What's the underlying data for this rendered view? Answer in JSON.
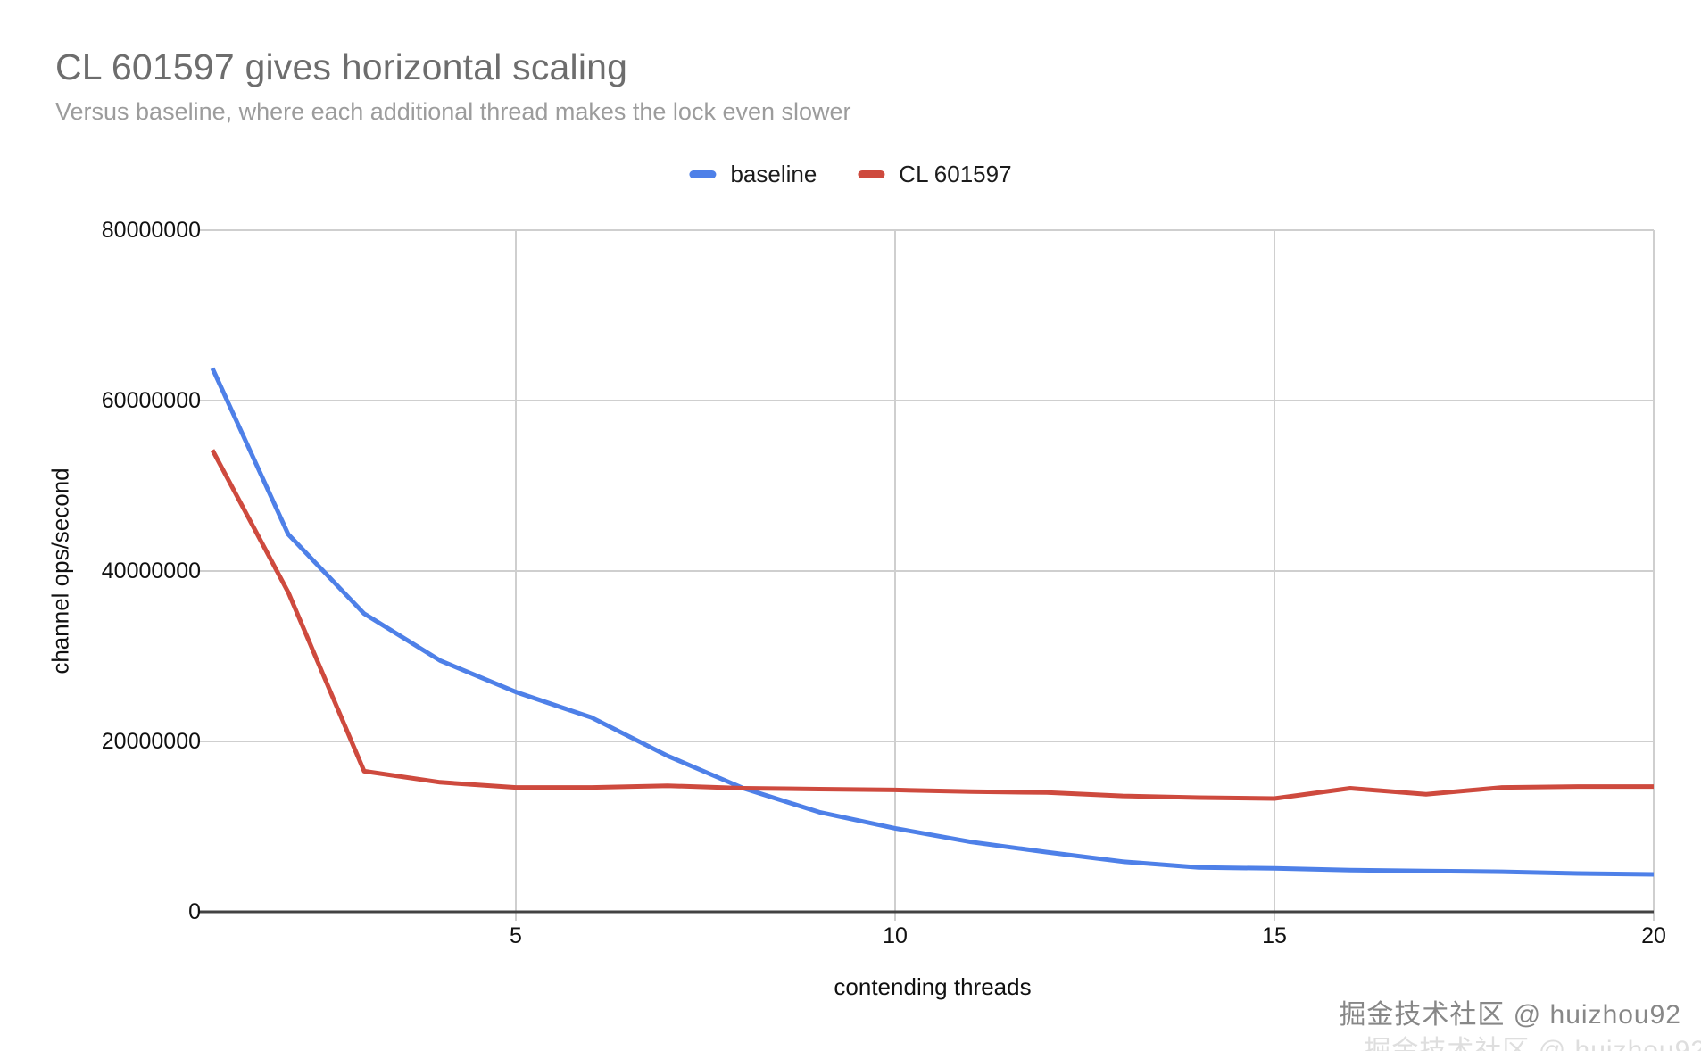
{
  "title": "CL 601597 gives horizontal scaling",
  "subtitle": "Versus baseline, where each additional thread makes the lock even slower",
  "watermark": {
    "text": "掘金技术社区 @ huizhou92"
  },
  "style": {
    "series_blue": "#4E80E8",
    "series_red": "#CE4A3E",
    "gridline_color": "#cfcfcf",
    "axis_color": "#424242",
    "title_color": "#6d6d6d",
    "subtitle_color": "#9c9c9c"
  },
  "chart_data": {
    "type": "line",
    "title": "CL 601597 gives horizontal scaling",
    "subtitle": "Versus baseline, where each additional thread makes the lock even slower",
    "xlabel": "contending threads",
    "ylabel": "channel ops/second",
    "xlim": [
      1,
      20
    ],
    "ylim": [
      0,
      80000000
    ],
    "xticks": [
      5,
      10,
      15,
      20
    ],
    "yticks": [
      0,
      20000000,
      40000000,
      60000000,
      80000000
    ],
    "grid": true,
    "legend_position": "top",
    "x": [
      1,
      2,
      3,
      4,
      5,
      6,
      7,
      8,
      9,
      10,
      11,
      12,
      13,
      14,
      15,
      16,
      17,
      18,
      19,
      20
    ],
    "series": [
      {
        "name": "baseline",
        "color": "#4E80E8",
        "values": [
          63800000,
          44300000,
          35000000,
          29500000,
          25800000,
          22800000,
          18300000,
          14500000,
          11700000,
          9800000,
          8200000,
          7000000,
          5900000,
          5200000,
          5100000,
          4900000,
          4800000,
          4700000,
          4500000,
          4400000
        ]
      },
      {
        "name": "CL 601597",
        "color": "#CE4A3E",
        "values": [
          54200000,
          37500000,
          16500000,
          15200000,
          14600000,
          14600000,
          14800000,
          14500000,
          14400000,
          14300000,
          14100000,
          14000000,
          13600000,
          13400000,
          13300000,
          14500000,
          13800000,
          14600000,
          14700000,
          14700000
        ]
      }
    ]
  }
}
